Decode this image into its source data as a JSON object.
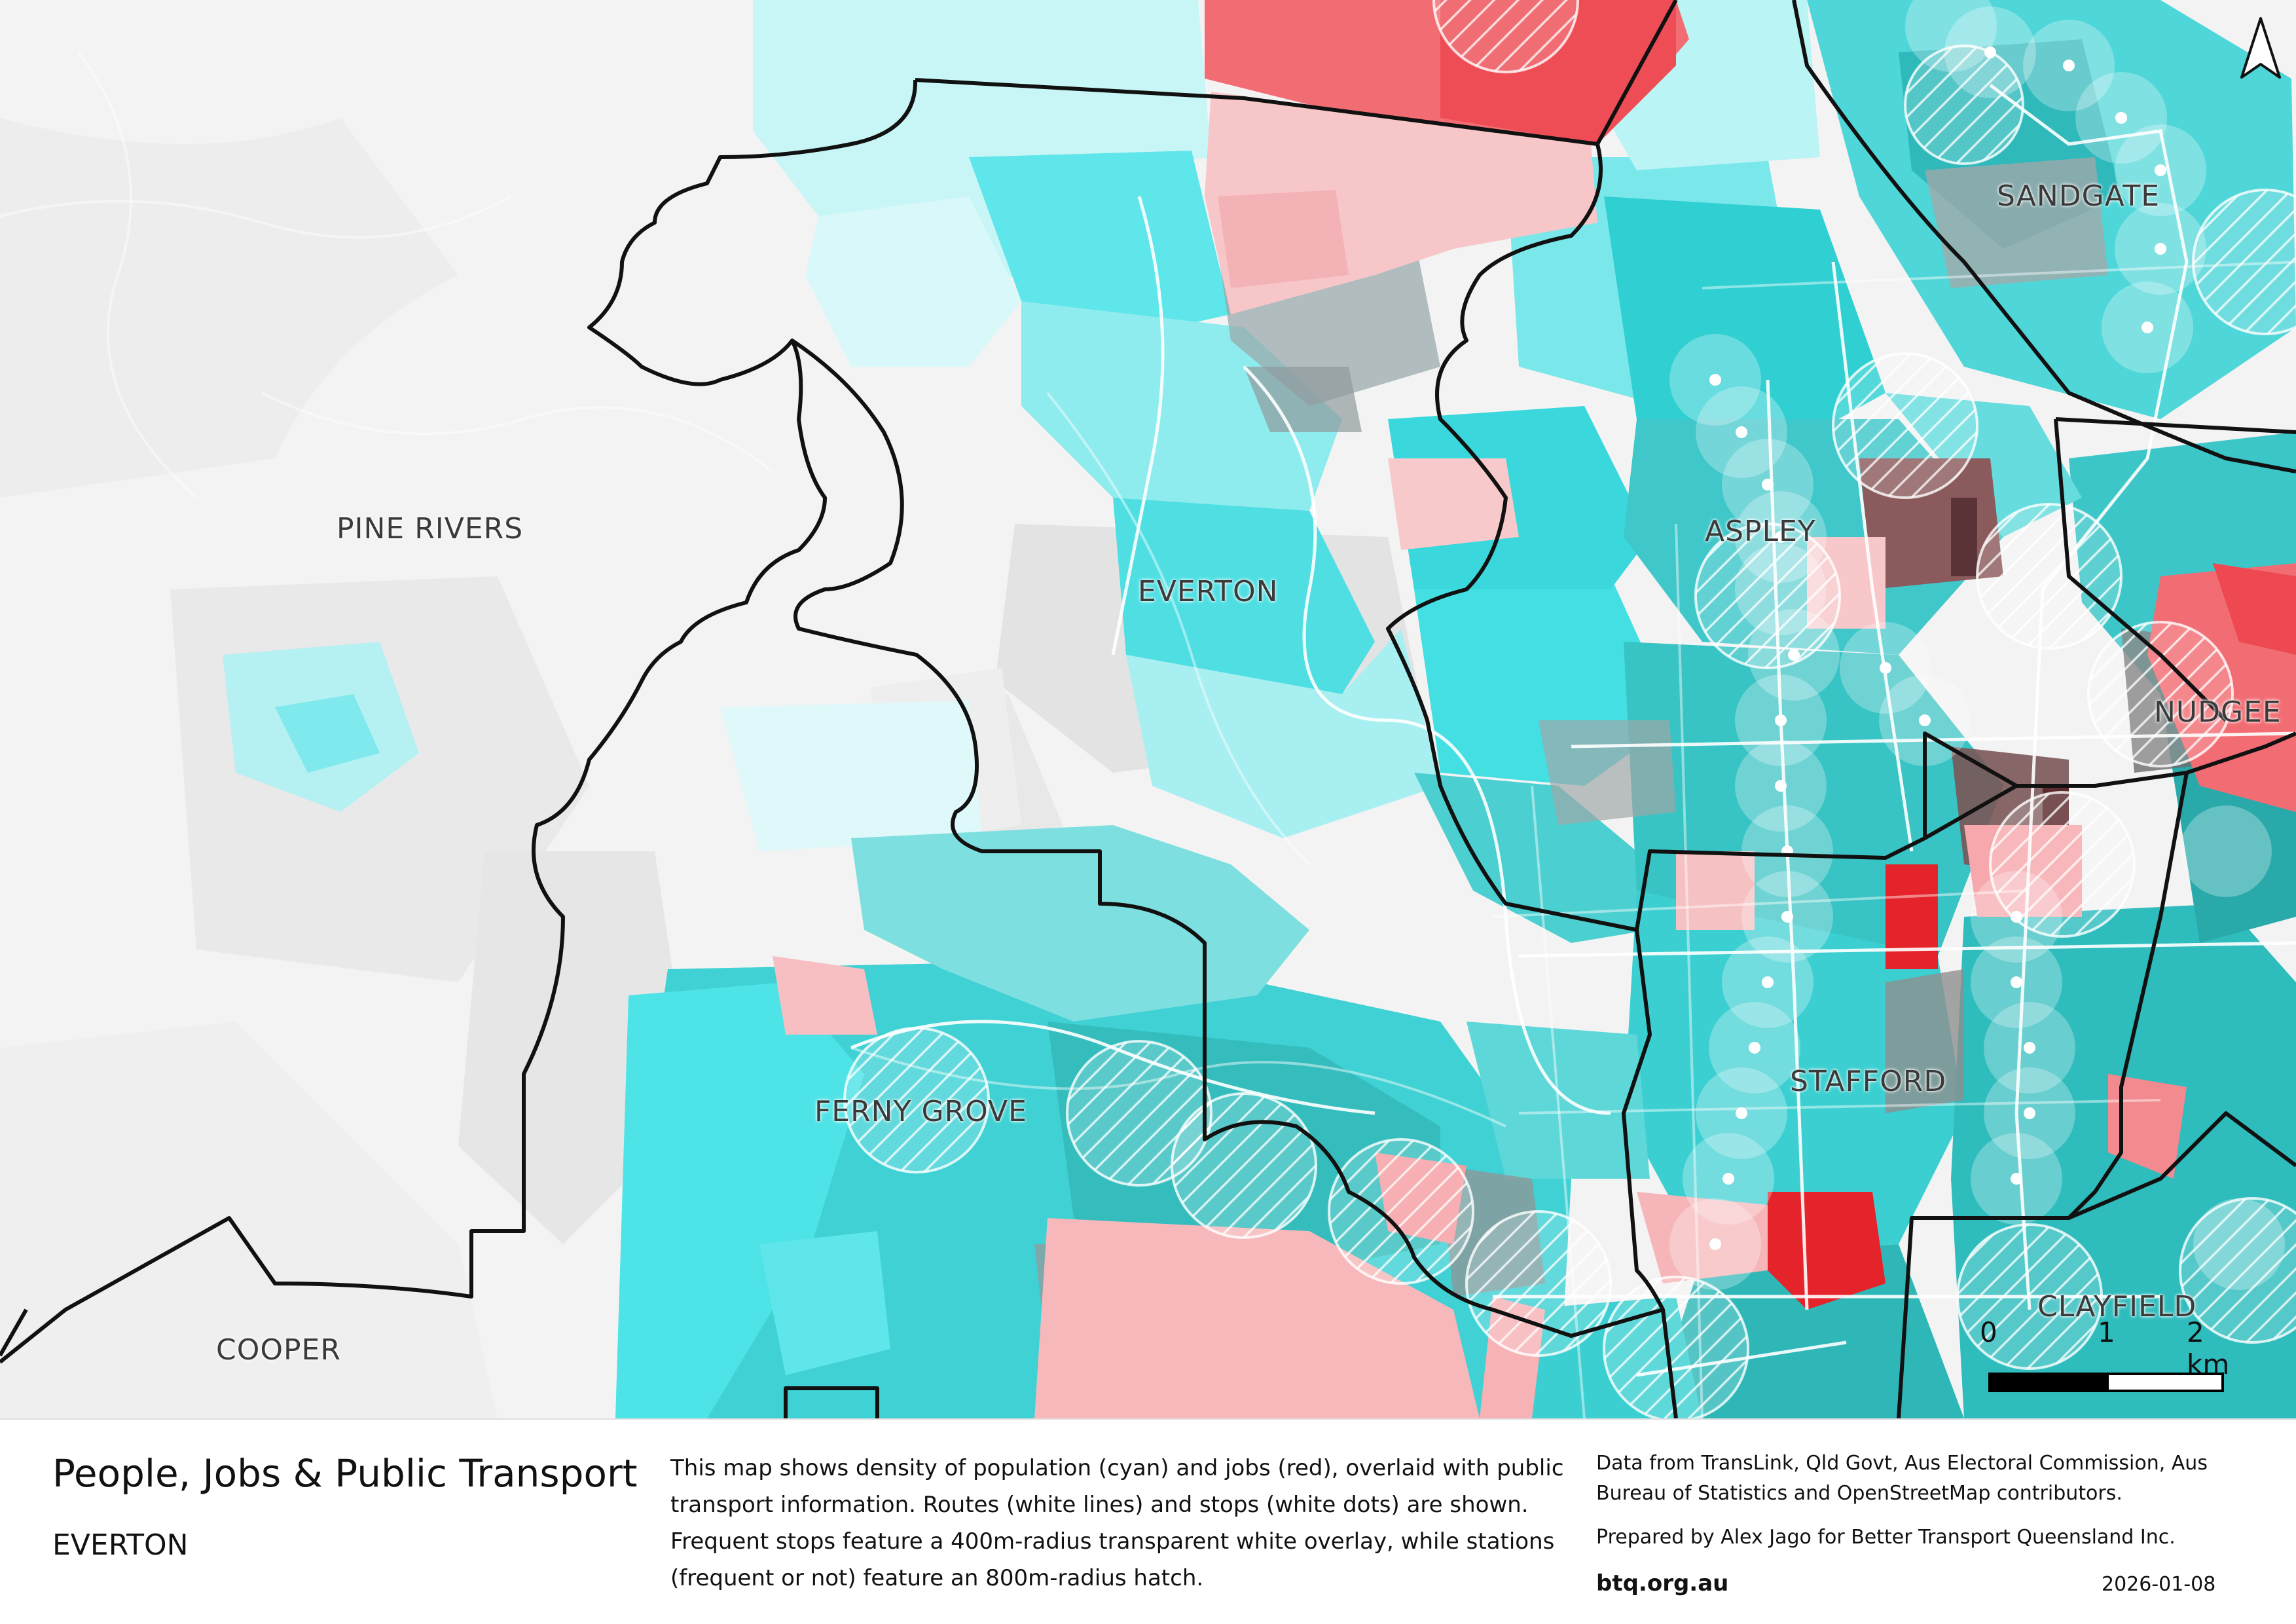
{
  "map": {
    "suburbs": [
      {
        "id": "pine-rivers",
        "label": "PINE RIVERS"
      },
      {
        "id": "everton",
        "label": "EVERTON"
      },
      {
        "id": "sandgate",
        "label": "SANDGATE"
      },
      {
        "id": "aspley",
        "label": "ASPLEY"
      },
      {
        "id": "nudgee",
        "label": "NUDGEE"
      },
      {
        "id": "ferny-grove",
        "label": "FERNY GROVE"
      },
      {
        "id": "stafford",
        "label": "STAFFORD"
      },
      {
        "id": "clayfield",
        "label": "CLAYFIELD"
      },
      {
        "id": "cooper",
        "label": "COOPER"
      }
    ],
    "scale": {
      "labels": [
        "0",
        "1",
        "2 km"
      ]
    },
    "north_arrow_icon": "north-arrow-icon",
    "colors": {
      "population": "#3fe3e6",
      "population_dark": "#2fb9b8",
      "jobs": "#f26d73",
      "jobs_strong": "#e5232b",
      "mixed": "#7c4f52",
      "boundary": "#111111",
      "route": "#ffffff"
    }
  },
  "footer": {
    "title": "People, Jobs & Public Transport",
    "subtitle": "EVERTON",
    "description": "This map shows density of population (cyan) and jobs (red), overlaid with public transport information. Routes (white lines) and stops (white dots) are shown. Frequent stops feature a 400m-radius transparent white overlay, while stations (frequent or not) feature an 800m-radius hatch.",
    "credits": "Data from TransLink,  Qld Govt,  Aus Electoral Commission, Aus Bureau of Statistics and OpenStreetMap contributors.",
    "prepared_by": "Prepared by Alex Jago for Better Transport Queensland Inc.",
    "website": "btq.org.au",
    "date": "2026-01-08"
  }
}
